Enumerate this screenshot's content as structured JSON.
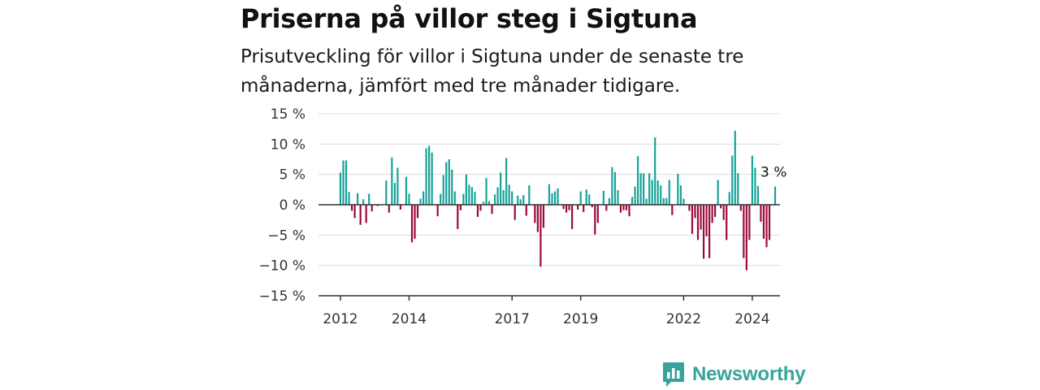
{
  "title": "Priserna på villor steg i Sigtuna",
  "subtitle": "Prisutveckling för villor i Sigtuna under de senaste tre månaderna, jämfört med tre månader tidigare.",
  "brand": {
    "name": "Newsworthy",
    "icon": "newsworthy-logo-icon"
  },
  "colors": {
    "positive": "#17a398",
    "negative": "#9c0a3c",
    "grid": "#dcdcdc",
    "zero": "#333333",
    "brand": "#35a49a"
  },
  "chart_data": {
    "type": "bar",
    "title": "Priserna på villor steg i Sigtuna",
    "subtitle": "Prisutveckling för villor i Sigtuna under de senaste tre månaderna, jämfört med tre månader tidigare.",
    "xlabel": "",
    "ylabel": "",
    "x_ticks": [
      "2012",
      "2014",
      "2017",
      "2019",
      "2022",
      "2024"
    ],
    "y_ticks": [
      "15 %",
      "10 %",
      "5 %",
      "0 %",
      "−5 %",
      "−10 %",
      "−15 %"
    ],
    "ylim": [
      -15,
      15
    ],
    "grid": true,
    "legend": "none",
    "start": "2012-01",
    "frequency": "monthly",
    "annotation": {
      "text": "3 %",
      "value": 3,
      "position": "last bar"
    },
    "values": [
      5.3,
      7.3,
      7.3,
      2.1,
      -1.0,
      -2.2,
      1.9,
      -3.3,
      0.9,
      -3.0,
      1.8,
      -1.1,
      0,
      -0.2,
      0,
      0,
      4.0,
      -1.3,
      7.8,
      3.6,
      6.1,
      -0.8,
      0,
      4.6,
      1.8,
      -6.2,
      -5.6,
      -2.2,
      1.0,
      2.2,
      9.3,
      9.7,
      8.6,
      0,
      -1.9,
      1.8,
      4.9,
      7.0,
      7.5,
      5.8,
      2.2,
      -4.0,
      -0.9,
      1.8,
      5.0,
      3.3,
      2.9,
      2.1,
      -2.0,
      -1.0,
      0.5,
      4.4,
      0.6,
      -1.5,
      1.7,
      2.9,
      5.3,
      2.4,
      7.7,
      3.3,
      2.2,
      -2.5,
      1.5,
      0.9,
      1.6,
      -1.8,
      3.2,
      0,
      -3.0,
      -4.5,
      -10.2,
      -3.8,
      0,
      3.4,
      1.9,
      2.2,
      2.7,
      0,
      -0.7,
      -1.3,
      -0.9,
      -4.0,
      0,
      -0.8,
      2.2,
      -1.2,
      2.5,
      1.7,
      -0.4,
      -4.9,
      -3.0,
      0,
      2.3,
      -1.0,
      1.1,
      6.2,
      5.4,
      2.4,
      -1.3,
      -0.9,
      -0.9,
      -1.9,
      1.3,
      3.0,
      8.0,
      5.2,
      5.2,
      1.0,
      5.2,
      4.1,
      11.1,
      4.0,
      3.2,
      1.1,
      1.1,
      4.1,
      -1.7,
      0,
      5.1,
      3.2,
      1.0,
      0,
      -1.0,
      -4.8,
      -2.2,
      -5.8,
      -4.1,
      -8.9,
      -5.2,
      -8.8,
      -3.0,
      -2.0,
      4.1,
      -0.6,
      -2.5,
      -5.8,
      2.1,
      8.1,
      12.2,
      5.2,
      -1.0,
      -8.8,
      -10.8,
      -5.8,
      8.1,
      6.1,
      3.1,
      -2.8,
      -5.6,
      -7.0,
      -5.8,
      0,
      3.0
    ]
  }
}
